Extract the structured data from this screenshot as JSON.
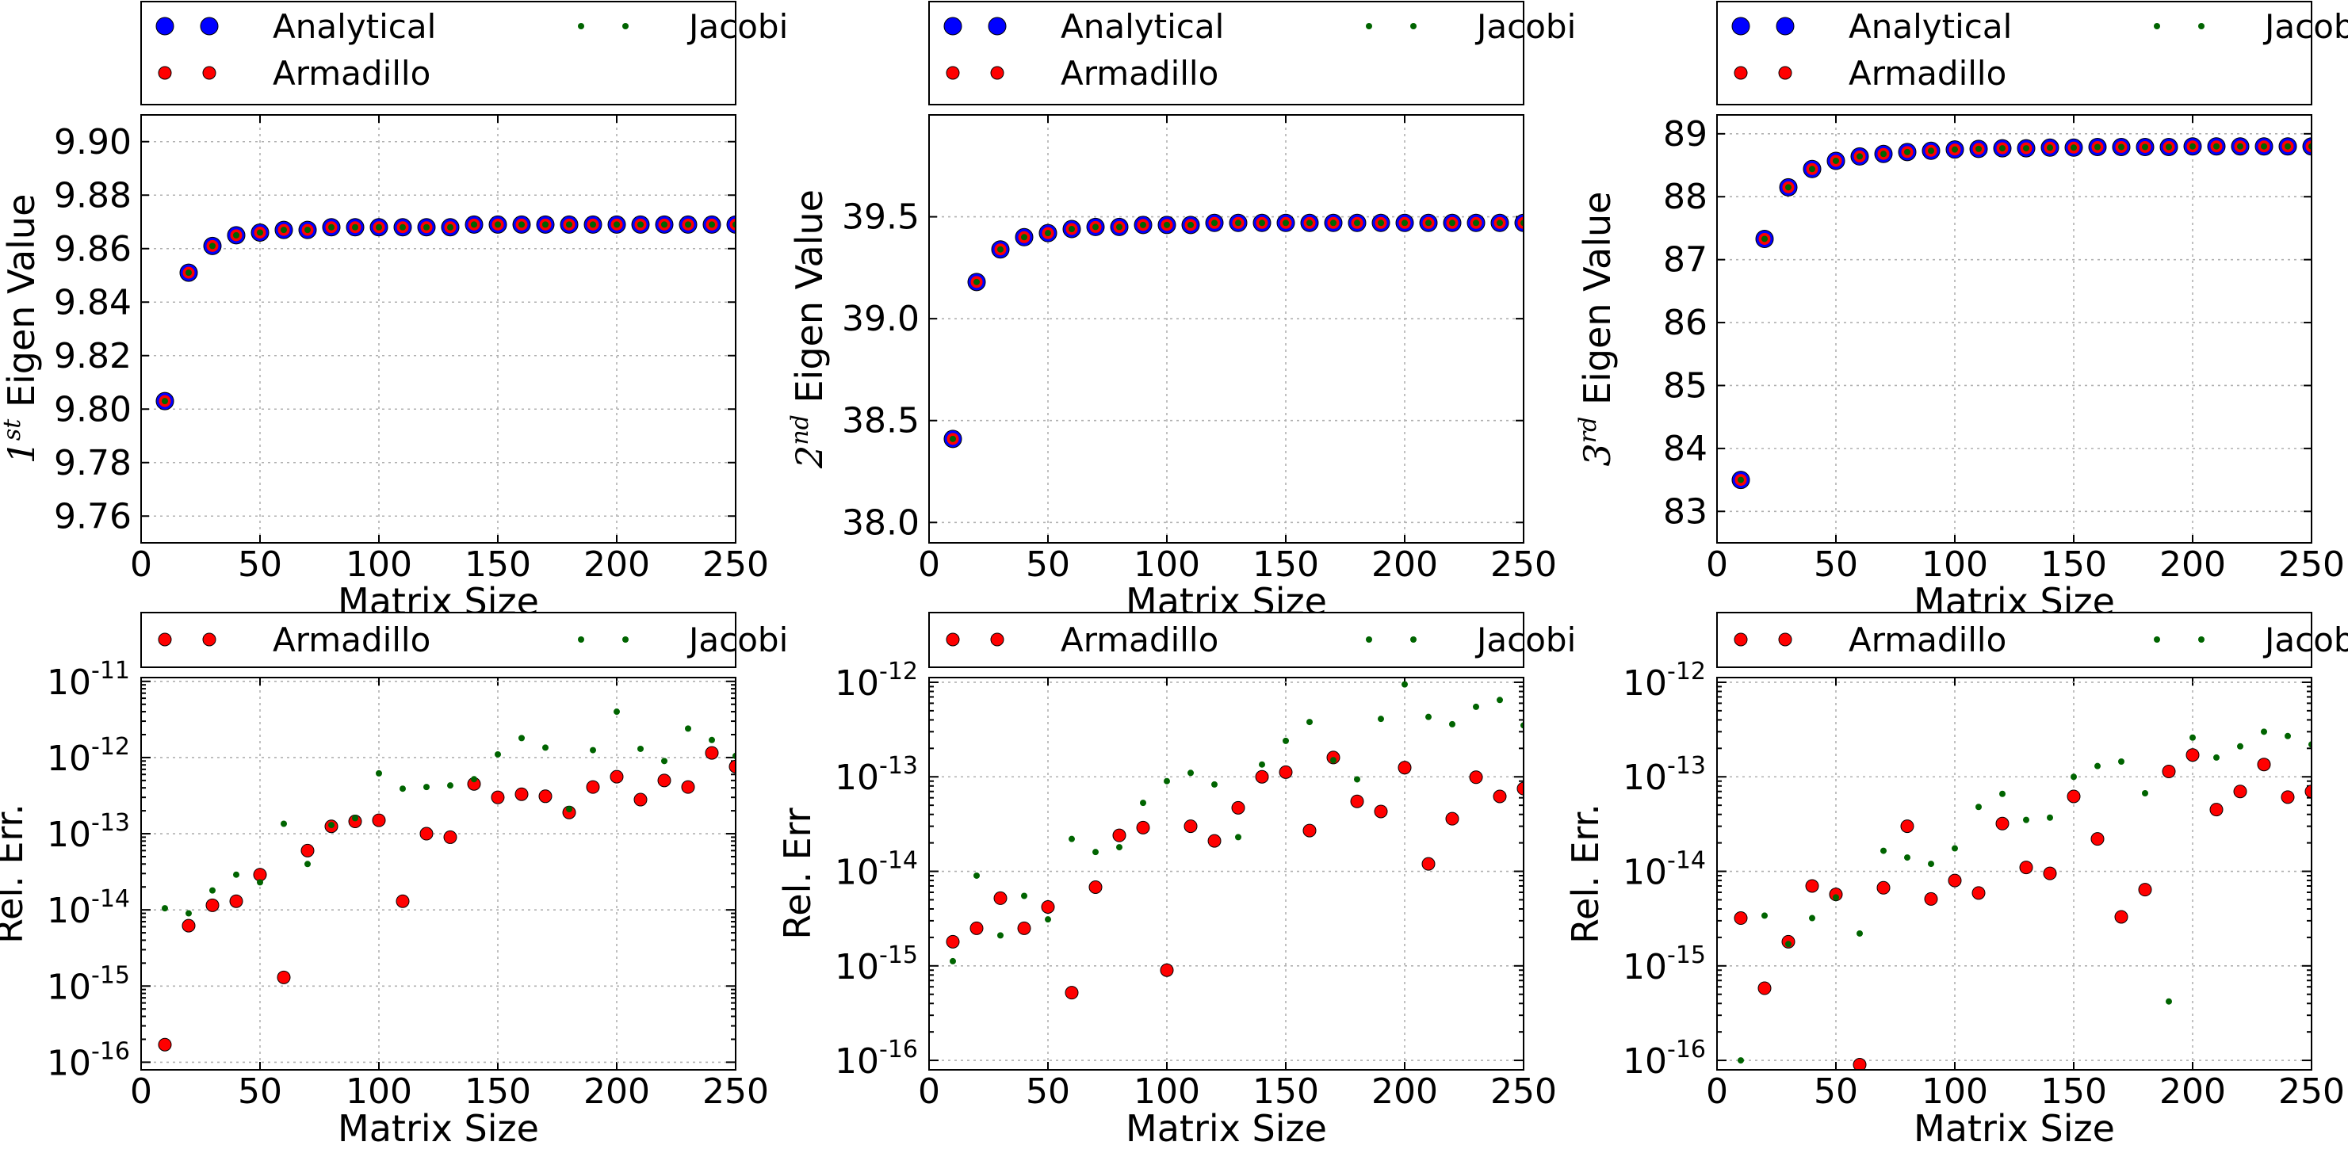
{
  "chart_data": [
    {
      "type": "scatter",
      "xlabel": "Matrix Size",
      "ylabel_html": "1st Eigen Value",
      "ylabel_sup": "st",
      "ylabel_base": "1",
      "ylabel_text": " Eigen Value",
      "xlim": [
        0,
        250
      ],
      "ylim": [
        9.75,
        9.91
      ],
      "yscale": "linear",
      "xticks": [
        "0",
        "50",
        "100",
        "150",
        "200",
        "250"
      ],
      "yticks": [
        "9.76",
        "9.78",
        "9.80",
        "9.82",
        "9.84",
        "9.86",
        "9.88",
        "9.90"
      ],
      "ytick_values": [
        9.76,
        9.78,
        9.8,
        9.82,
        9.84,
        9.86,
        9.88,
        9.9
      ],
      "grid": true,
      "legend": [
        "Analytical",
        "Armadillo",
        "Jacobi"
      ],
      "x": [
        10,
        20,
        30,
        40,
        50,
        60,
        70,
        80,
        90,
        100,
        110,
        120,
        130,
        140,
        150,
        160,
        170,
        180,
        190,
        200,
        210,
        220,
        230,
        240,
        250
      ],
      "series": [
        {
          "name": "Analytical",
          "color": "#0000ff",
          "values": [
            9.803,
            9.851,
            9.861,
            9.865,
            9.866,
            9.867,
            9.867,
            9.868,
            9.868,
            9.868,
            9.868,
            9.868,
            9.868,
            9.869,
            9.869,
            9.869,
            9.869,
            9.869,
            9.869,
            9.869,
            9.869,
            9.869,
            9.869,
            9.869,
            9.869
          ]
        },
        {
          "name": "Armadillo",
          "color": "#ff0000",
          "values": [
            9.803,
            9.851,
            9.861,
            9.865,
            9.866,
            9.867,
            9.867,
            9.868,
            9.868,
            9.868,
            9.868,
            9.868,
            9.868,
            9.869,
            9.869,
            9.869,
            9.869,
            9.869,
            9.869,
            9.869,
            9.869,
            9.869,
            9.869,
            9.869,
            9.869
          ]
        },
        {
          "name": "Jacobi",
          "color": "#006400",
          "values": [
            9.803,
            9.851,
            9.861,
            9.865,
            9.866,
            9.867,
            9.867,
            9.868,
            9.868,
            9.868,
            9.868,
            9.868,
            9.868,
            9.869,
            9.869,
            9.869,
            9.869,
            9.869,
            9.869,
            9.869,
            9.869,
            9.869,
            9.869,
            9.869,
            9.869
          ]
        }
      ]
    },
    {
      "type": "scatter",
      "xlabel": "Matrix Size",
      "ylabel_base": "2",
      "ylabel_sup": "nd",
      "ylabel_text": " Eigen Value",
      "xlim": [
        0,
        250
      ],
      "ylim": [
        37.9,
        40.0
      ],
      "yscale": "linear",
      "xticks": [
        "0",
        "50",
        "100",
        "150",
        "200",
        "250"
      ],
      "yticks": [
        "38.0",
        "38.5",
        "39.0",
        "39.5"
      ],
      "ytick_values": [
        38.0,
        38.5,
        39.0,
        39.5
      ],
      "grid": true,
      "legend": [
        "Analytical",
        "Armadillo",
        "Jacobi"
      ],
      "x": [
        10,
        20,
        30,
        40,
        50,
        60,
        70,
        80,
        90,
        100,
        110,
        120,
        130,
        140,
        150,
        160,
        170,
        180,
        190,
        200,
        210,
        220,
        230,
        240,
        250
      ],
      "series": [
        {
          "name": "Analytical",
          "color": "#0000ff",
          "values": [
            38.41,
            39.18,
            39.34,
            39.4,
            39.42,
            39.44,
            39.45,
            39.45,
            39.46,
            39.46,
            39.46,
            39.47,
            39.47,
            39.47,
            39.47,
            39.47,
            39.47,
            39.47,
            39.47,
            39.47,
            39.47,
            39.47,
            39.47,
            39.47,
            39.47
          ]
        },
        {
          "name": "Armadillo",
          "color": "#ff0000",
          "values": [
            38.41,
            39.18,
            39.34,
            39.4,
            39.42,
            39.44,
            39.45,
            39.45,
            39.46,
            39.46,
            39.46,
            39.47,
            39.47,
            39.47,
            39.47,
            39.47,
            39.47,
            39.47,
            39.47,
            39.47,
            39.47,
            39.47,
            39.47,
            39.47,
            39.47
          ]
        },
        {
          "name": "Jacobi",
          "color": "#006400",
          "values": [
            38.41,
            39.18,
            39.34,
            39.4,
            39.42,
            39.44,
            39.45,
            39.45,
            39.46,
            39.46,
            39.46,
            39.47,
            39.47,
            39.47,
            39.47,
            39.47,
            39.47,
            39.47,
            39.47,
            39.47,
            39.47,
            39.47,
            39.47,
            39.47,
            39.47
          ]
        }
      ]
    },
    {
      "type": "scatter",
      "xlabel": "Matrix Size",
      "ylabel_base": "3",
      "ylabel_sup": "rd",
      "ylabel_text": " Eigen Value",
      "xlim": [
        0,
        250
      ],
      "ylim": [
        82.5,
        89.3
      ],
      "yscale": "linear",
      "xticks": [
        "0",
        "50",
        "100",
        "150",
        "200",
        "250"
      ],
      "yticks": [
        "83",
        "84",
        "85",
        "86",
        "87",
        "88",
        "89"
      ],
      "ytick_values": [
        83,
        84,
        85,
        86,
        87,
        88,
        89
      ],
      "grid": true,
      "legend": [
        "Analytical",
        "Armadillo",
        "Jacobi"
      ],
      "x": [
        10,
        20,
        30,
        40,
        50,
        60,
        70,
        80,
        90,
        100,
        110,
        120,
        130,
        140,
        150,
        160,
        170,
        180,
        190,
        200,
        210,
        220,
        230,
        240,
        250
      ],
      "series": [
        {
          "name": "Analytical",
          "color": "#0000ff",
          "values": [
            83.5,
            87.33,
            88.15,
            88.44,
            88.57,
            88.64,
            88.68,
            88.71,
            88.73,
            88.75,
            88.76,
            88.77,
            88.77,
            88.78,
            88.78,
            88.79,
            88.79,
            88.79,
            88.79,
            88.8,
            88.8,
            88.8,
            88.8,
            88.8,
            88.8
          ]
        },
        {
          "name": "Armadillo",
          "color": "#ff0000",
          "values": [
            83.5,
            87.33,
            88.15,
            88.44,
            88.57,
            88.64,
            88.68,
            88.71,
            88.73,
            88.75,
            88.76,
            88.77,
            88.77,
            88.78,
            88.78,
            88.79,
            88.79,
            88.79,
            88.79,
            88.8,
            88.8,
            88.8,
            88.8,
            88.8,
            88.8
          ]
        },
        {
          "name": "Jacobi",
          "color": "#006400",
          "values": [
            83.5,
            87.33,
            88.15,
            88.44,
            88.57,
            88.64,
            88.68,
            88.71,
            88.73,
            88.75,
            88.76,
            88.77,
            88.77,
            88.78,
            88.78,
            88.79,
            88.79,
            88.79,
            88.79,
            88.8,
            88.8,
            88.8,
            88.8,
            88.8,
            88.8
          ]
        }
      ]
    },
    {
      "type": "scatter",
      "xlabel": "Matrix Size",
      "ylabel": "Rel. Err.",
      "xlim": [
        0,
        250
      ],
      "ylim_exp": [
        -16.1,
        -10.95
      ],
      "yscale": "log",
      "xticks": [
        "0",
        "50",
        "100",
        "150",
        "200",
        "250"
      ],
      "ytick_exponents": [
        -16,
        -15,
        -14,
        -13,
        -12,
        -11
      ],
      "grid": true,
      "legend": [
        "Armadillo",
        "Jacobi"
      ],
      "x": [
        10,
        20,
        30,
        40,
        50,
        60,
        70,
        80,
        90,
        100,
        110,
        120,
        130,
        140,
        150,
        160,
        170,
        180,
        190,
        200,
        210,
        220,
        230,
        240,
        250
      ],
      "series": [
        {
          "name": "Armadillo",
          "color": "#ff0000",
          "values": [
            1.7e-16,
            6.2e-15,
            1.15e-14,
            1.3e-14,
            2.9e-14,
            1.3e-15,
            6e-14,
            1.25e-13,
            1.45e-13,
            1.5e-13,
            1.3e-14,
            1e-13,
            9e-14,
            4.5e-13,
            3e-13,
            3.3e-13,
            3.1e-13,
            1.9e-13,
            4.1e-13,
            5.6e-13,
            2.8e-13,
            5e-13,
            4.1e-13,
            1.15e-12,
            7.6e-13
          ]
        },
        {
          "name": "Jacobi",
          "color": "#006400",
          "values": [
            1.05e-14,
            9e-15,
            1.8e-14,
            2.9e-14,
            2.3e-14,
            1.35e-13,
            4e-14,
            1.3e-13,
            1.6e-13,
            6.2e-13,
            3.9e-13,
            4.1e-13,
            4.3e-13,
            5.2e-13,
            1.1e-12,
            1.8e-12,
            1.35e-12,
            2.1e-13,
            1.25e-12,
            4e-12,
            1.3e-12,
            9e-13,
            2.4e-12,
            1.7e-12,
            1.05e-12
          ]
        }
      ]
    },
    {
      "type": "scatter",
      "xlabel": "Matrix Size",
      "ylabel": "Rel. Err",
      "xlim": [
        0,
        250
      ],
      "ylim_exp": [
        -16.1,
        -11.95
      ],
      "yscale": "log",
      "xticks": [
        "0",
        "50",
        "100",
        "150",
        "200",
        "250"
      ],
      "ytick_exponents": [
        -16,
        -15,
        -14,
        -13,
        -12
      ],
      "grid": true,
      "legend": [
        "Armadillo",
        "Jacobi"
      ],
      "x": [
        10,
        20,
        30,
        40,
        50,
        60,
        70,
        80,
        90,
        100,
        110,
        120,
        130,
        140,
        150,
        160,
        170,
        180,
        190,
        200,
        210,
        220,
        230,
        240,
        250
      ],
      "series": [
        {
          "name": "Armadillo",
          "color": "#ff0000",
          "values": [
            1.8e-15,
            2.5e-15,
            5.2e-15,
            2.5e-15,
            4.2e-15,
            5.2e-16,
            6.8e-15,
            2.4e-14,
            2.9e-14,
            9e-16,
            3e-14,
            2.1e-14,
            4.7e-14,
            1e-13,
            1.12e-13,
            2.7e-14,
            1.6e-13,
            5.5e-14,
            4.3e-14,
            1.25e-13,
            1.2e-14,
            3.6e-14,
            9.9e-14,
            6.2e-14,
            7.5e-14
          ]
        },
        {
          "name": "Jacobi",
          "color": "#006400",
          "values": [
            1.12e-15,
            9e-15,
            2.1e-15,
            5.5e-15,
            3.1e-15,
            2.2e-14,
            1.6e-14,
            1.8e-14,
            5.3e-14,
            9e-14,
            1.1e-13,
            8.3e-14,
            2.3e-14,
            1.35e-13,
            2.4e-13,
            3.8e-13,
            1.5e-13,
            9.4e-14,
            4.1e-13,
            9.5e-13,
            4.3e-13,
            3.6e-13,
            5.5e-13,
            6.5e-13,
            3.5e-13
          ]
        }
      ]
    },
    {
      "type": "scatter",
      "xlabel": "Matrix Size",
      "ylabel": "Rel. Err.",
      "xlim": [
        0,
        250
      ],
      "ylim_exp": [
        -16.1,
        -11.95
      ],
      "yscale": "log",
      "xticks": [
        "0",
        "50",
        "100",
        "150",
        "200",
        "250"
      ],
      "ytick_exponents": [
        -16,
        -15,
        -14,
        -13,
        -12
      ],
      "grid": true,
      "legend": [
        "Armadillo",
        "Jacobi"
      ],
      "x": [
        10,
        20,
        30,
        40,
        50,
        60,
        70,
        80,
        90,
        100,
        110,
        120,
        130,
        140,
        150,
        160,
        170,
        180,
        190,
        200,
        210,
        220,
        230,
        240,
        250
      ],
      "series": [
        {
          "name": "Armadillo",
          "color": "#ff0000",
          "values": [
            3.2e-15,
            5.8e-16,
            1.8e-15,
            7e-15,
            5.7e-15,
            9e-17,
            6.7e-15,
            3e-14,
            5.1e-15,
            8e-15,
            5.9e-15,
            3.2e-14,
            1.1e-14,
            9.5e-15,
            6.2e-14,
            2.2e-14,
            3.3e-15,
            6.4e-15,
            1.14e-13,
            1.7e-13,
            4.5e-14,
            7e-14,
            1.35e-13,
            6.1e-14,
            7e-14
          ]
        },
        {
          "name": "Jacobi",
          "color": "#006400",
          "values": [
            1e-16,
            3.4e-15,
            1.7e-15,
            3.2e-15,
            5.3e-15,
            2.2e-15,
            1.65e-14,
            1.4e-14,
            1.2e-14,
            1.75e-14,
            4.8e-14,
            6.6e-14,
            3.5e-14,
            3.7e-14,
            1e-13,
            1.3e-13,
            1.45e-13,
            6.7e-14,
            4.2e-16,
            2.6e-13,
            1.6e-13,
            2.1e-13,
            3e-13,
            2.7e-13,
            2.2e-13
          ]
        }
      ]
    }
  ]
}
